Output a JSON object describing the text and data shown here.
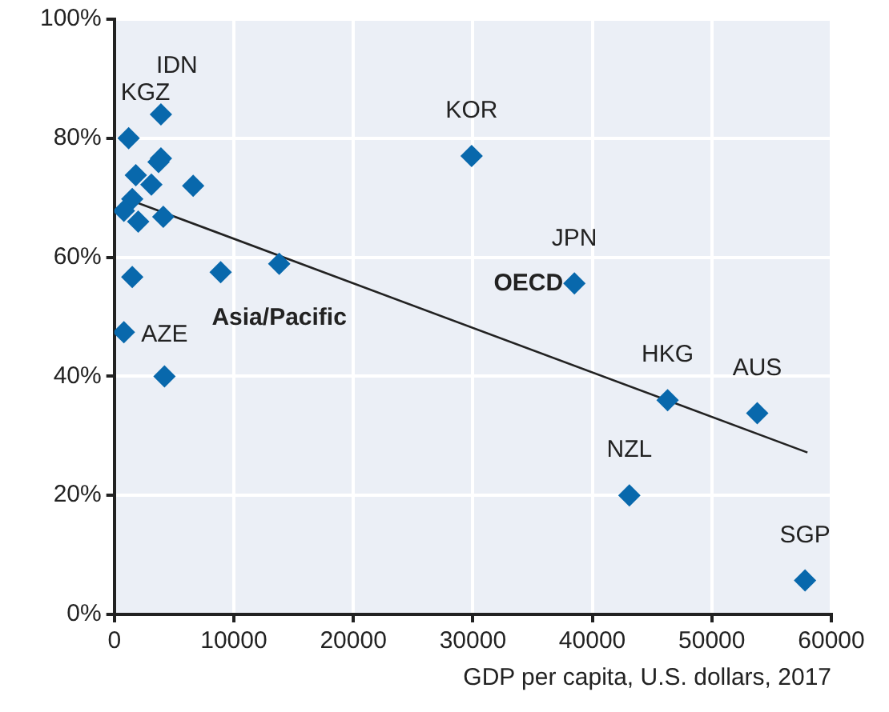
{
  "chart_data": {
    "type": "scatter",
    "xlabel": "GDP per capita, U.S. dollars, 2017",
    "series": [
      {
        "type": "scatter",
        "color": "#0868ac",
        "x": [
          1200,
          3900,
          3900,
          3700,
          1800,
          3100,
          6600,
          1500,
          800,
          2000,
          4100,
          1500,
          8900,
          13800,
          800,
          4200,
          29900,
          38500,
          46300,
          53800,
          43100,
          57800
        ],
        "values": [
          80,
          84,
          76.6,
          76,
          73.8,
          72.2,
          72,
          69.8,
          67.8,
          66,
          66.8,
          56.7,
          57.5,
          58.9,
          47.4,
          40,
          77,
          55.6,
          36,
          33.8,
          20,
          5.7
        ]
      },
      {
        "type": "line",
        "color": "#222222",
        "marker": "none",
        "x": [
          800,
          58000
        ],
        "values": [
          70,
          27.2
        ]
      }
    ],
    "xlim": [
      0,
      60000
    ],
    "xticks": [
      0,
      10000,
      20000,
      30000,
      40000,
      50000,
      60000
    ],
    "ylim": [
      0,
      100
    ],
    "yticks": [
      {
        "value": 0,
        "label": "0%"
      },
      {
        "value": 20,
        "label": "20%"
      },
      {
        "value": 40,
        "label": "40%"
      },
      {
        "value": 60,
        "label": "60%"
      },
      {
        "value": 80,
        "label": "80%"
      },
      {
        "value": 100,
        "label": "100%"
      }
    ],
    "grid": true,
    "marker": "diamond",
    "legend": false,
    "annotations": [
      {
        "text": "KGZ",
        "x": 1200,
        "y": 80
      },
      {
        "text": "IDN",
        "x": 3900,
        "y": 84
      },
      {
        "text": "KOR",
        "x": 29900,
        "y": 77
      },
      {
        "text": "JPN",
        "x": 38500,
        "y": 55.6
      },
      {
        "text": "OECD",
        "x": 38500,
        "y": 55.6
      },
      {
        "text": "Asia/Pacific",
        "x": 13800,
        "y": 58.9
      },
      {
        "text": "AZE",
        "x": 4200,
        "y": 40
      },
      {
        "text": "HKG",
        "x": 46300,
        "y": 36
      },
      {
        "text": "AUS",
        "x": 53800,
        "y": 33.8
      },
      {
        "text": "NZL",
        "x": 43100,
        "y": 20
      },
      {
        "text": "SGP",
        "x": 57800,
        "y": 5.7
      }
    ]
  }
}
